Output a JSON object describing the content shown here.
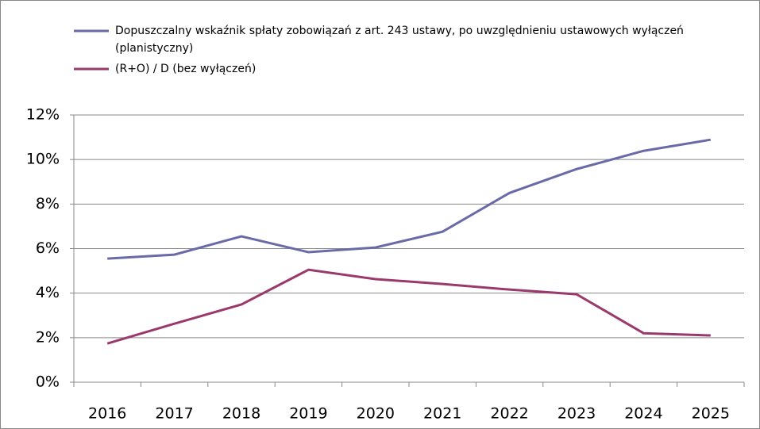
{
  "chart_data": {
    "type": "line",
    "categories": [
      "2016",
      "2017",
      "2018",
      "2019",
      "2020",
      "2021",
      "2022",
      "2023",
      "2024",
      "2025"
    ],
    "series": [
      {
        "name": "Dopuszczalny wskaźnik spłaty zobowiązań z art. 243 ustawy, po uwzględnieniu ustawowych wyłączeń (planistyczny)",
        "color": "#6a6aa8",
        "values": [
          5.55,
          5.73,
          6.55,
          5.84,
          6.05,
          6.76,
          8.5,
          9.57,
          10.39,
          10.89
        ]
      },
      {
        "name": "(R+O) / D (bez wyłączeń)",
        "color": "#9a3a6c",
        "values": [
          1.74,
          2.63,
          3.49,
          5.05,
          4.63,
          4.41,
          4.16,
          3.95,
          2.2,
          2.1
        ]
      }
    ],
    "ylim": [
      0,
      12
    ],
    "yticks": [
      {
        "value": 0,
        "label": "0%"
      },
      {
        "value": 2,
        "label": "2%"
      },
      {
        "value": 4,
        "label": "4%"
      },
      {
        "value": 6,
        "label": "6%"
      },
      {
        "value": 8,
        "label": "8%"
      },
      {
        "value": 10,
        "label": "10%"
      },
      {
        "value": 12,
        "label": "12%"
      }
    ],
    "grid": true,
    "legend": "top"
  }
}
